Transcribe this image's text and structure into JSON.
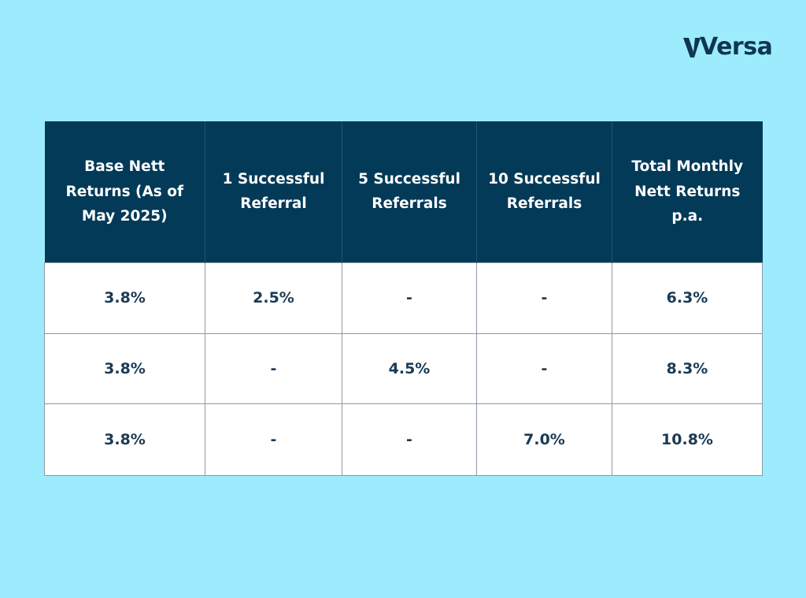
{
  "brand": {
    "name": "Versa"
  },
  "table": {
    "headers": [
      "Base Nett Returns (As of May 2025)",
      "1 Successful Referral",
      "5 Successful Referrals",
      "10 Successful Referrals",
      "Total Monthly Nett Returns p.a."
    ],
    "rows": [
      [
        "3.8%",
        "2.5%",
        "-",
        "-",
        "6.3%"
      ],
      [
        "3.8%",
        "-",
        "4.5%",
        "-",
        "8.3%"
      ],
      [
        "3.8%",
        "-",
        "-",
        "7.0%",
        "10.8%"
      ]
    ]
  },
  "colors": {
    "background": "#9cecfd",
    "header": "#023a58",
    "brand": "#0f3651",
    "cell_text": "#1a3a55"
  }
}
